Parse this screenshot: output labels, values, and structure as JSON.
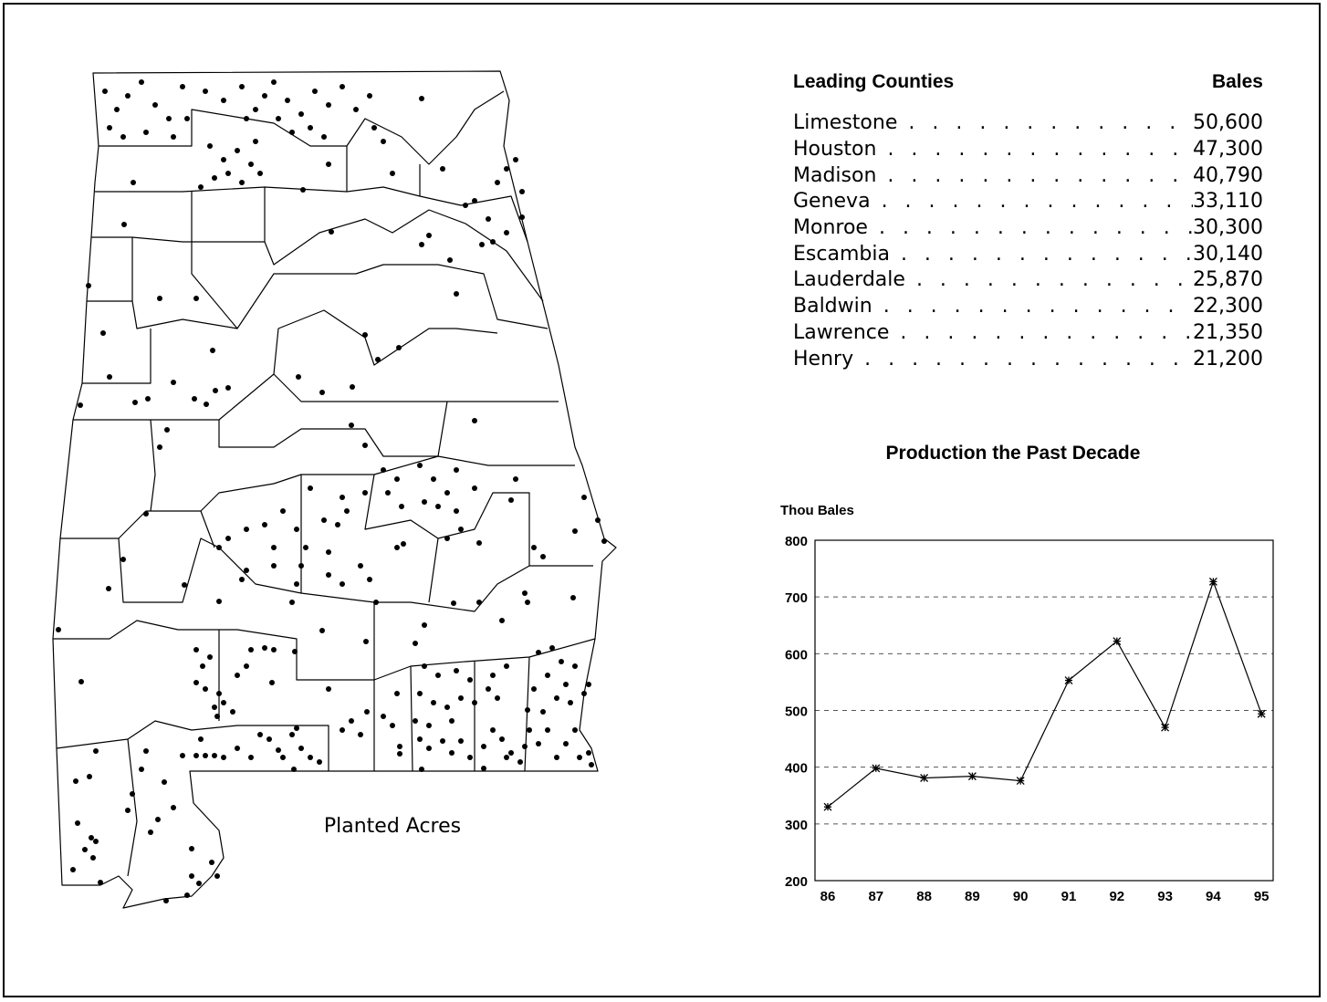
{
  "map": {
    "caption": "Planted Acres"
  },
  "table": {
    "header_county": "Leading Counties",
    "header_value": "Bales",
    "rows": [
      {
        "county": "Limestone",
        "bales": "50,600"
      },
      {
        "county": "Houston",
        "bales": "47,300"
      },
      {
        "county": "Madison",
        "bales": "40,790"
      },
      {
        "county": "Geneva",
        "bales": "33,110"
      },
      {
        "county": "Monroe",
        "bales": "30,300"
      },
      {
        "county": "Escambia",
        "bales": "30,140"
      },
      {
        "county": "Lauderdale",
        "bales": "25,870"
      },
      {
        "county": "Baldwin",
        "bales": "22,300"
      },
      {
        "county": "Lawrence",
        "bales": "21,350"
      },
      {
        "county": "Henry",
        "bales": "21,200"
      }
    ]
  },
  "chart_data": {
    "type": "line",
    "title": "Production the Past Decade",
    "ylabel": "Thou Bales",
    "xlabel": "",
    "categories": [
      "86",
      "87",
      "88",
      "89",
      "90",
      "91",
      "92",
      "93",
      "94",
      "95"
    ],
    "values": [
      330,
      398,
      381,
      384,
      376,
      553,
      622,
      470,
      727,
      494
    ],
    "ylim": [
      200,
      800
    ],
    "yticks": [
      200,
      300,
      400,
      500,
      600,
      700,
      800
    ],
    "grid": "horizontal dashed",
    "marker": "asterisk",
    "color": "#000000"
  }
}
